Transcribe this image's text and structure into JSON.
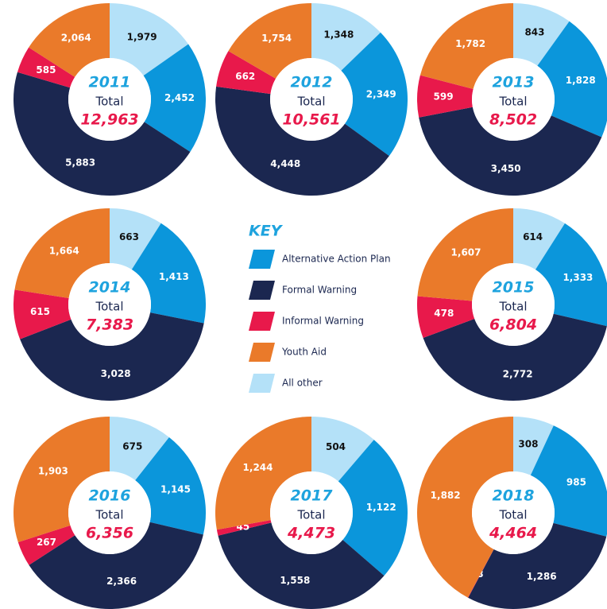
{
  "key": {
    "title": "KEY",
    "categories": [
      "Alternative Action Plan",
      "Formal Warning",
      "Informal Warning",
      "Youth Aid",
      "All other"
    ],
    "colors": [
      "#0b96db",
      "#1b2750",
      "#e8194b",
      "#ea7a2a",
      "#b4e1f8"
    ]
  },
  "chart_data": [
    {
      "type": "pie",
      "title": "2011",
      "center_label": "Total",
      "total": 12963,
      "total_label": "12,963",
      "values": [
        2452,
        5883,
        585,
        2064,
        1979
      ],
      "value_labels": [
        "2,452",
        "5,883",
        "585",
        "2,064",
        "1,979"
      ]
    },
    {
      "type": "pie",
      "title": "2012",
      "center_label": "Total",
      "total": 10561,
      "total_label": "10,561",
      "values": [
        2349,
        4448,
        662,
        1754,
        1348
      ],
      "value_labels": [
        "2,349",
        "4,448",
        "662",
        "1,754",
        "1,348"
      ]
    },
    {
      "type": "pie",
      "title": "2013",
      "center_label": "Total",
      "total": 8502,
      "total_label": "8,502",
      "values": [
        1828,
        3450,
        599,
        1782,
        843
      ],
      "value_labels": [
        "1,828",
        "3,450",
        "599",
        "1,782",
        "843"
      ]
    },
    {
      "type": "pie",
      "title": "2014",
      "center_label": "Total",
      "total": 7383,
      "total_label": "7,383",
      "values": [
        1413,
        3028,
        615,
        1664,
        663
      ],
      "value_labels": [
        "1,413",
        "3,028",
        "615",
        "1,664",
        "663"
      ]
    },
    {
      "type": "pie",
      "title": "2015",
      "center_label": "Total",
      "total": 6804,
      "total_label": "6,804",
      "values": [
        1333,
        2772,
        478,
        1607,
        614
      ],
      "value_labels": [
        "1,333",
        "2,772",
        "478",
        "1,607",
        "614"
      ]
    },
    {
      "type": "pie",
      "title": "2016",
      "center_label": "Total",
      "total": 6356,
      "total_label": "6,356",
      "values": [
        1145,
        2366,
        267,
        1903,
        675
      ],
      "value_labels": [
        "1,145",
        "2,366",
        "267",
        "1,903",
        "675"
      ]
    },
    {
      "type": "pie",
      "title": "2017",
      "center_label": "Total",
      "total": 4473,
      "total_label": "4,473",
      "values": [
        1122,
        1558,
        45,
        1244,
        504
      ],
      "value_labels": [
        "1,122",
        "1,558",
        "45",
        "1,244",
        "504"
      ]
    },
    {
      "type": "pie",
      "title": "2018",
      "center_label": "Total",
      "total": 4464,
      "total_label": "4,464",
      "values": [
        985,
        1286,
        3,
        1882,
        308
      ],
      "value_labels": [
        "985",
        "1,286",
        "3",
        "1,882",
        "308"
      ]
    }
  ]
}
